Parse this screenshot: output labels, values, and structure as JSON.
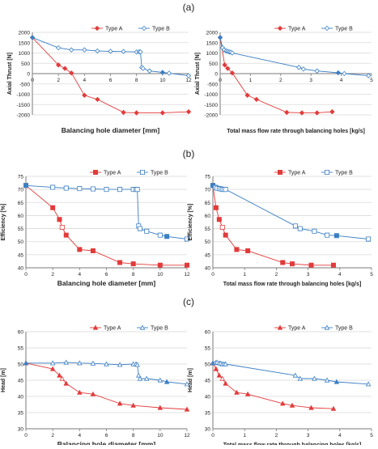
{
  "colors": {
    "type_a": "#e23b3b",
    "type_b": "#3b7fc4",
    "grid": "#d9d9d9",
    "axis": "#7a7a7a"
  },
  "chart_data": [
    {
      "panel": "(a)",
      "type": "line",
      "xlabel": "Balancing hole diameter [mm]",
      "ylabel": "Axial Thrust [N]",
      "xlim": [
        0,
        12
      ],
      "ylim": [
        -2000,
        2000
      ],
      "xticks": [
        0,
        2,
        4,
        6,
        8,
        10,
        12
      ],
      "yticks": [
        -2000,
        -1500,
        -1000,
        -500,
        0,
        500,
        1000,
        1500,
        2000
      ],
      "legend": "top-right",
      "series": [
        {
          "name": "Type A",
          "marker": "diamond",
          "points": [
            [
              0,
              1750
            ],
            [
              2,
              420
            ],
            [
              2.5,
              250
            ],
            [
              3,
              30
            ],
            [
              4,
              -1050
            ],
            [
              5,
              -1250
            ],
            [
              7,
              -1880
            ],
            [
              8,
              -1900
            ],
            [
              10,
              -1900
            ],
            [
              12,
              -1850
            ]
          ],
          "filled": [
            0,
            1,
            2,
            3,
            4,
            5,
            6,
            7,
            8,
            9
          ]
        },
        {
          "name": "Type B",
          "marker": "diamond",
          "points": [
            [
              0,
              1750
            ],
            [
              2,
              1250
            ],
            [
              3,
              1150
            ],
            [
              4,
              1150
            ],
            [
              5,
              1100
            ],
            [
              6,
              1080
            ],
            [
              7,
              1070
            ],
            [
              8,
              1050
            ],
            [
              8.2,
              1060
            ],
            [
              8.3,
              1050
            ],
            [
              8.4,
              300
            ],
            [
              8.5,
              250
            ],
            [
              9,
              130
            ],
            [
              10,
              60
            ],
            [
              10.5,
              20
            ],
            [
              12,
              -100
            ]
          ],
          "filled": [
            0,
            13
          ]
        }
      ]
    },
    {
      "panel": "(a)",
      "type": "scatter",
      "xlabel": "Total mass flow rate through balancing holes [kg/s]",
      "ylabel": "Axial Thrust [N]",
      "xlim": [
        0,
        5
      ],
      "ylim": [
        -2000,
        2000
      ],
      "xticks": [
        0,
        1,
        2,
        3,
        4,
        5
      ],
      "yticks": [
        -2000,
        -1500,
        -1000,
        -500,
        0,
        500,
        1000,
        1500,
        2000
      ],
      "legend": "top-right",
      "series": [
        {
          "name": "Type A",
          "marker": "diamond",
          "points": [
            [
              0,
              1750
            ],
            [
              0.15,
              420
            ],
            [
              0.25,
              250
            ],
            [
              0.4,
              30
            ],
            [
              0.9,
              -1050
            ],
            [
              1.2,
              -1250
            ],
            [
              2.2,
              -1880
            ],
            [
              2.7,
              -1900
            ],
            [
              3.2,
              -1900
            ],
            [
              3.7,
              -1850
            ]
          ],
          "filled": [
            0,
            1,
            2,
            3,
            4,
            5,
            6,
            7,
            8,
            9
          ]
        },
        {
          "name": "Type B",
          "marker": "diamond",
          "points": [
            [
              0,
              1750
            ],
            [
              0.08,
              1250
            ],
            [
              0.13,
              1150
            ],
            [
              0.2,
              1100
            ],
            [
              0.25,
              1080
            ],
            [
              0.3,
              1050
            ],
            [
              0.35,
              1040
            ],
            [
              0.4,
              1000
            ],
            [
              2.6,
              300
            ],
            [
              2.75,
              220
            ],
            [
              3.2,
              130
            ],
            [
              3.9,
              40
            ],
            [
              4.1,
              0
            ],
            [
              4.9,
              -100
            ]
          ],
          "filled": [
            0,
            11
          ]
        }
      ]
    },
    {
      "panel": "(b)",
      "type": "line",
      "xlabel": "Balancing hole diameter [mm]",
      "ylabel": "Efficiency [%]",
      "xlim": [
        0,
        12
      ],
      "ylim": [
        40,
        75
      ],
      "xticks": [
        0,
        2,
        4,
        6,
        8,
        10,
        12
      ],
      "yticks": [
        40,
        45,
        50,
        55,
        60,
        65,
        70,
        75
      ],
      "legend": "top-right",
      "series": [
        {
          "name": "Type A",
          "marker": "square",
          "points": [
            [
              0,
              71.5
            ],
            [
              2,
              63
            ],
            [
              2.5,
              58.5
            ],
            [
              2.7,
              55.5
            ],
            [
              3,
              52.5
            ],
            [
              4,
              47
            ],
            [
              5,
              46.5
            ],
            [
              7,
              42
            ],
            [
              8,
              41.5
            ],
            [
              10,
              41
            ],
            [
              12,
              41
            ]
          ],
          "filled": [
            0,
            1,
            2,
            4,
            5,
            6,
            7,
            8,
            9,
            10
          ]
        },
        {
          "name": "Type B",
          "marker": "square",
          "points": [
            [
              0,
              71.5
            ],
            [
              2,
              70.8
            ],
            [
              3,
              70.5
            ],
            [
              4,
              70.3
            ],
            [
              5,
              70.2
            ],
            [
              6,
              70
            ],
            [
              7,
              70
            ],
            [
              8,
              70
            ],
            [
              8.2,
              70
            ],
            [
              8.3,
              70
            ],
            [
              8.4,
              56
            ],
            [
              8.5,
              55
            ],
            [
              9,
              54
            ],
            [
              10,
              52.5
            ],
            [
              10.5,
              52
            ],
            [
              12,
              51
            ]
          ],
          "filled": [
            0,
            14
          ]
        }
      ]
    },
    {
      "panel": "(b)",
      "type": "scatter",
      "xlabel": "Total mass flow rate through balancing holes [kg/s]",
      "ylabel": "Efficiency [%]",
      "xlim": [
        0,
        5
      ],
      "ylim": [
        40,
        75
      ],
      "xticks": [
        0,
        1,
        2,
        3,
        4,
        5
      ],
      "yticks": [
        40,
        45,
        50,
        55,
        60,
        65,
        70,
        75
      ],
      "legend": "top-right",
      "series": [
        {
          "name": "Type A",
          "marker": "square",
          "points": [
            [
              0,
              71.5
            ],
            [
              0.1,
              63
            ],
            [
              0.2,
              58.5
            ],
            [
              0.3,
              55.5
            ],
            [
              0.4,
              52.5
            ],
            [
              0.75,
              47
            ],
            [
              1.1,
              46.5
            ],
            [
              2.2,
              42
            ],
            [
              2.5,
              41.5
            ],
            [
              3.1,
              41
            ],
            [
              3.8,
              41
            ]
          ],
          "filled": [
            0,
            1,
            2,
            4,
            5,
            6,
            7,
            8,
            9,
            10
          ]
        },
        {
          "name": "Type B",
          "marker": "square",
          "points": [
            [
              0,
              71.5
            ],
            [
              0.08,
              70.8
            ],
            [
              0.13,
              70.5
            ],
            [
              0.2,
              70.3
            ],
            [
              0.25,
              70.2
            ],
            [
              0.3,
              70
            ],
            [
              0.35,
              70
            ],
            [
              0.4,
              70
            ],
            [
              2.6,
              56
            ],
            [
              2.75,
              55
            ],
            [
              3.2,
              54
            ],
            [
              3.6,
              52.5
            ],
            [
              3.9,
              52.3
            ],
            [
              4.9,
              51
            ]
          ],
          "filled": [
            0,
            12
          ]
        }
      ]
    },
    {
      "panel": "(c)",
      "type": "line",
      "xlabel": "Balancing hole diameter [mm]",
      "ylabel": "Head [m]",
      "xlim": [
        0,
        12
      ],
      "ylim": [
        30,
        60
      ],
      "xticks": [
        0,
        2,
        4,
        6,
        8,
        10,
        12
      ],
      "yticks": [
        30,
        35,
        40,
        45,
        50,
        55,
        60
      ],
      "legend": "top-right",
      "series": [
        {
          "name": "Type A",
          "marker": "triangle",
          "points": [
            [
              0,
              50.3
            ],
            [
              2,
              48.5
            ],
            [
              2.5,
              46.5
            ],
            [
              2.7,
              45.5
            ],
            [
              3,
              44
            ],
            [
              4,
              41.2
            ],
            [
              5,
              40.7
            ],
            [
              7,
              37.8
            ],
            [
              8,
              37.2
            ],
            [
              10,
              36.5
            ],
            [
              12,
              36
            ]
          ],
          "filled": [
            0,
            1,
            2,
            4,
            5,
            6,
            7,
            8,
            9,
            10
          ]
        },
        {
          "name": "Type B",
          "marker": "triangle",
          "points": [
            [
              0,
              50.3
            ],
            [
              2,
              50.3
            ],
            [
              3,
              50.5
            ],
            [
              4,
              50.3
            ],
            [
              5,
              50.2
            ],
            [
              6,
              50
            ],
            [
              7,
              49.8
            ],
            [
              8,
              50
            ],
            [
              8.2,
              50
            ],
            [
              8.3,
              49.8
            ],
            [
              8.4,
              46.5
            ],
            [
              8.5,
              45.5
            ],
            [
              9,
              45.5
            ],
            [
              10,
              45
            ],
            [
              10.5,
              44.5
            ],
            [
              12,
              43.8
            ]
          ],
          "filled": [
            0,
            14
          ]
        }
      ]
    },
    {
      "panel": "(c)",
      "type": "scatter",
      "xlabel": "Total mass flow rate through balancing holes [kg/s]",
      "ylabel": "Head [m]",
      "xlim": [
        0,
        5
      ],
      "ylim": [
        30,
        60
      ],
      "xticks": [
        0,
        1,
        2,
        3,
        4,
        5
      ],
      "yticks": [
        30,
        35,
        40,
        45,
        50,
        55,
        60
      ],
      "legend": "top-right",
      "series": [
        {
          "name": "Type A",
          "marker": "triangle",
          "points": [
            [
              0,
              50.3
            ],
            [
              0.1,
              48.5
            ],
            [
              0.2,
              46.5
            ],
            [
              0.3,
              45.5
            ],
            [
              0.4,
              44
            ],
            [
              0.75,
              41.2
            ],
            [
              1.1,
              40.7
            ],
            [
              2.2,
              37.8
            ],
            [
              2.5,
              37.2
            ],
            [
              3.1,
              36.5
            ],
            [
              3.8,
              36.2
            ]
          ],
          "filled": [
            0,
            1,
            2,
            4,
            5,
            6,
            7,
            8,
            9,
            10
          ]
        },
        {
          "name": "Type B",
          "marker": "triangle",
          "points": [
            [
              0,
              50.3
            ],
            [
              0.08,
              50.4
            ],
            [
              0.13,
              50.5
            ],
            [
              0.2,
              50.3
            ],
            [
              0.25,
              50.2
            ],
            [
              0.3,
              50
            ],
            [
              0.35,
              50
            ],
            [
              0.4,
              50
            ],
            [
              2.6,
              46.5
            ],
            [
              2.75,
              45.5
            ],
            [
              3.2,
              45.5
            ],
            [
              3.6,
              45
            ],
            [
              3.9,
              44.5
            ],
            [
              4.9,
              43.8
            ]
          ],
          "filled": [
            0,
            12
          ]
        }
      ]
    }
  ],
  "panel_labels": [
    "(a)",
    "(b)",
    "(c)"
  ]
}
